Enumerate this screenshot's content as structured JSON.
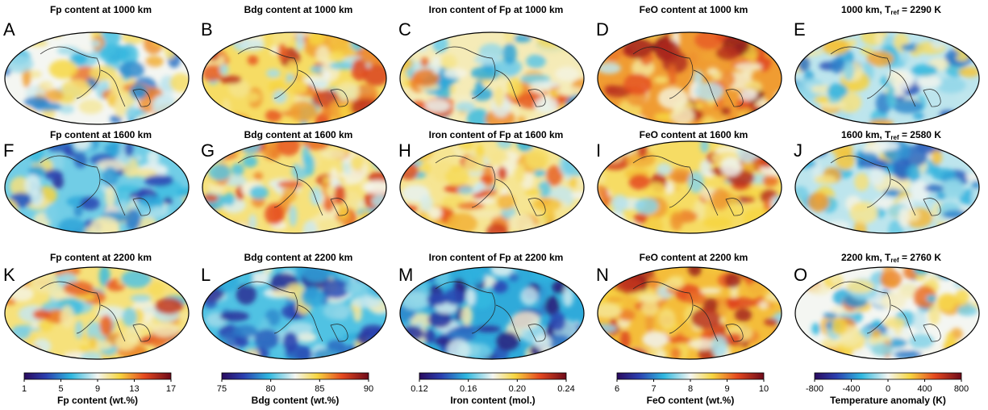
{
  "panels": [
    {
      "letter": "A",
      "title": "Fp content at 1000 km"
    },
    {
      "letter": "B",
      "title": "Bdg content at 1000 km"
    },
    {
      "letter": "C",
      "title": "Iron content of Fp at 1000 km"
    },
    {
      "letter": "D",
      "title": "FeO content at 1000 km"
    },
    {
      "letter": "E",
      "title": {
        "pre": "1000 km, T",
        "sub": "ref",
        "post": " = 2290 K"
      }
    },
    {
      "letter": "F",
      "title": "Fp content at 1600 km"
    },
    {
      "letter": "G",
      "title": "Bdg content at 1600 km"
    },
    {
      "letter": "H",
      "title": "Iron content of Fp at 1600 km"
    },
    {
      "letter": "I",
      "title": "FeO content at 1600 km"
    },
    {
      "letter": "J",
      "title": {
        "pre": "1600 km, T",
        "sub": "ref",
        "post": " = 2580 K"
      }
    },
    {
      "letter": "K",
      "title": "Fp content at 2200 km"
    },
    {
      "letter": "L",
      "title": "Bdg content at 2200 km"
    },
    {
      "letter": "M",
      "title": "Iron content of Fp at 2200 km"
    },
    {
      "letter": "N",
      "title": "FeO content at 2200 km"
    },
    {
      "letter": "O",
      "title": {
        "pre": "2200 km, T",
        "sub": "ref",
        "post": " = 2760 K"
      }
    }
  ],
  "colorbars": [
    {
      "label": "Fp content (wt.%)",
      "range": [
        1,
        17
      ],
      "ticks": [
        1,
        5,
        9,
        13,
        17
      ]
    },
    {
      "label": "Bdg content (wt.%)",
      "range": [
        75,
        90
      ],
      "ticks": [
        75,
        80,
        85,
        90
      ]
    },
    {
      "label": "Iron content (mol.)",
      "range": [
        0.12,
        0.24
      ],
      "ticks": [
        0.12,
        0.16,
        {
          "value": 0.2,
          "label": "0.20"
        },
        0.24
      ]
    },
    {
      "label": "FeO content (wt.%)",
      "range": [
        6,
        10
      ],
      "ticks": [
        6,
        7,
        8,
        9,
        10
      ]
    },
    {
      "label": "Temperature anomaly (K)",
      "range": [
        -800,
        800
      ],
      "ticks": [
        -800,
        -400,
        0,
        400,
        800
      ]
    }
  ]
}
